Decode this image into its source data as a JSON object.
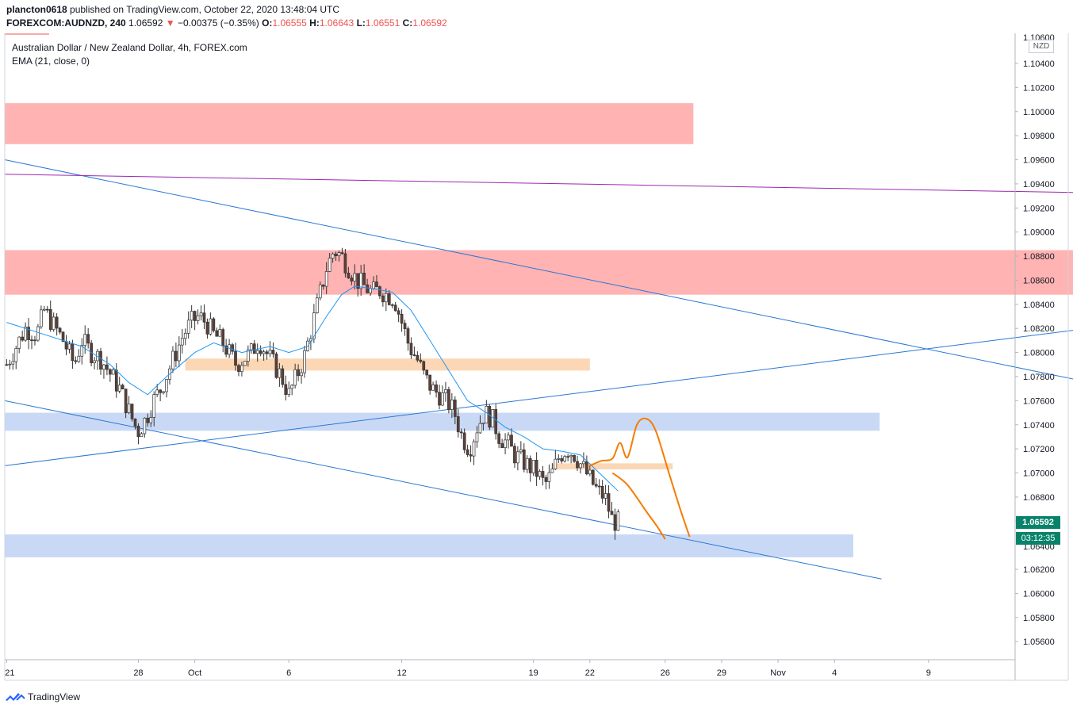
{
  "header": {
    "publisher": "plancton0618",
    "published_text": "published on TradingView.com, October 22, 2020 13:48:04 UTC",
    "symbol": "FOREXCOM:AUDNZD, 240",
    "price": "1.06592",
    "change_arrow": "▼",
    "change": "−0.00375 (−0.35%)",
    "o_label": "O:",
    "o_value": "1.06555",
    "h_label": "H:",
    "h_value": "1.06643",
    "l_label": "L:",
    "l_value": "1.06551",
    "c_label": "C:",
    "c_value": "1.06592"
  },
  "legend": {
    "title": "Australian Dollar / New Zealand Dollar, 4h, FOREX.com",
    "indicator": "EMA (21, close, 0)"
  },
  "price_axis": {
    "currency": "NZD",
    "top_partial_label": "1.10600",
    "last_price": "1.06592",
    "countdown": "03:12:35",
    "partial_label": "1.06400"
  },
  "footer": {
    "brand": "TradingView",
    "icon": "tradingview-logo-icon"
  },
  "colors": {
    "accent": "#08836b",
    "up_candle": "#26a69a",
    "down_candle": "#ef5350",
    "ema": "#2196f3",
    "red_zone": "#ffb3b3",
    "blue_zone": "#c9d9f5",
    "orange_zone": "#fcd7b5",
    "trendline": "#2a78d4",
    "purple_line": "#9c27b0",
    "projection": "#f57c00"
  },
  "chart_data": {
    "type": "candlestick",
    "timeframe": "4h",
    "y_range": [
      1.0545,
      1.1065
    ],
    "y_ticks": [
      "1.10400",
      "1.10200",
      "1.10000",
      "1.09800",
      "1.09600",
      "1.09400",
      "1.09200",
      "1.09000",
      "1.08800",
      "1.08600",
      "1.08400",
      "1.08200",
      "1.08000",
      "1.07800",
      "1.07600",
      "1.07400",
      "1.07200",
      "1.07000",
      "1.06800",
      "1.06600",
      "1.06200",
      "1.06000",
      "1.05800",
      "1.05600"
    ],
    "x_labels": [
      "21",
      "28",
      "Oct",
      "6",
      "12",
      "19",
      "22",
      "26",
      "29",
      "Nov",
      "4",
      "9"
    ],
    "x_label_days": [
      0,
      7,
      10,
      15,
      21,
      28,
      31,
      35,
      38,
      41,
      44,
      49
    ],
    "x_range_days": [
      -0.1,
      53.6
    ],
    "close_points": [
      [
        0,
        1.079
      ],
      [
        0.5,
        1.0805
      ],
      [
        1,
        1.082
      ],
      [
        1.6,
        1.0815
      ],
      [
        2,
        1.0835
      ],
      [
        2.6,
        1.082
      ],
      [
        3,
        1.081
      ],
      [
        3.6,
        1.079
      ],
      [
        4,
        1.081
      ],
      [
        4.5,
        1.08
      ],
      [
        5,
        1.0795
      ],
      [
        5.6,
        1.078
      ],
      [
        6,
        1.077
      ],
      [
        6.4,
        1.0755
      ],
      [
        6.8,
        1.074
      ],
      [
        7,
        1.0735
      ],
      [
        7.4,
        1.0745
      ],
      [
        7.8,
        1.076
      ],
      [
        8.2,
        1.077
      ],
      [
        8.6,
        1.0785
      ],
      [
        9,
        1.08
      ],
      [
        9.4,
        1.0815
      ],
      [
        9.8,
        1.0825
      ],
      [
        10.2,
        1.083
      ],
      [
        10.6,
        1.0825
      ],
      [
        11,
        1.0815
      ],
      [
        11.4,
        1.081
      ],
      [
        11.8,
        1.08
      ],
      [
        12.2,
        1.079
      ],
      [
        12.6,
        1.0795
      ],
      [
        13,
        1.08
      ],
      [
        13.4,
        1.081
      ],
      [
        13.8,
        1.08
      ],
      [
        14.2,
        1.079
      ],
      [
        14.6,
        1.078
      ],
      [
        15,
        1.0765
      ],
      [
        15.4,
        1.078
      ],
      [
        15.8,
        1.0795
      ],
      [
        16.2,
        1.082
      ],
      [
        16.6,
        1.0845
      ],
      [
        17,
        1.087
      ],
      [
        17.4,
        1.0885
      ],
      [
        17.8,
        1.088
      ],
      [
        18.2,
        1.087
      ],
      [
        18.6,
        1.086
      ],
      [
        19,
        1.0855
      ],
      [
        19.4,
        1.085
      ],
      [
        19.8,
        1.0852
      ],
      [
        20.2,
        1.0848
      ],
      [
        20.6,
        1.0845
      ],
      [
        21,
        1.0825
      ],
      [
        21.4,
        1.0805
      ],
      [
        21.8,
        1.0795
      ],
      [
        22.2,
        1.078
      ],
      [
        22.6,
        1.077
      ],
      [
        23,
        1.0765
      ],
      [
        23.4,
        1.076
      ],
      [
        23.8,
        1.075
      ],
      [
        24.2,
        1.073
      ],
      [
        24.6,
        1.072
      ],
      [
        25,
        1.0738
      ],
      [
        25.4,
        1.075
      ],
      [
        25.8,
        1.0745
      ],
      [
        26.2,
        1.073
      ],
      [
        26.6,
        1.0725
      ],
      [
        27,
        1.0715
      ],
      [
        27.4,
        1.071
      ],
      [
        27.8,
        1.0705
      ],
      [
        28.2,
        1.07
      ],
      [
        28.6,
        1.069
      ],
      [
        29,
        1.07
      ],
      [
        29.4,
        1.0715
      ],
      [
        29.8,
        1.072
      ],
      [
        30.2,
        1.0715
      ],
      [
        30.6,
        1.0705
      ],
      [
        31,
        1.0695
      ],
      [
        31.4,
        1.0685
      ],
      [
        31.8,
        1.068
      ],
      [
        32.2,
        1.066
      ],
      [
        32.5,
        1.0659
      ]
    ],
    "ema21_points": [
      [
        0,
        1.0825
      ],
      [
        2,
        1.0815
      ],
      [
        4,
        1.0805
      ],
      [
        5.5,
        1.079
      ],
      [
        6.5,
        1.0775
      ],
      [
        7.5,
        1.0765
      ],
      [
        8.5,
        1.078
      ],
      [
        10,
        1.08
      ],
      [
        11,
        1.0808
      ],
      [
        12.5,
        1.08
      ],
      [
        14,
        1.0805
      ],
      [
        15,
        1.08
      ],
      [
        16,
        1.0805
      ],
      [
        17,
        1.083
      ],
      [
        17.8,
        1.0848
      ],
      [
        18.5,
        1.0855
      ],
      [
        19.5,
        1.0853
      ],
      [
        20.5,
        1.085
      ],
      [
        21.5,
        1.0835
      ],
      [
        22.5,
        1.081
      ],
      [
        23.5,
        1.0785
      ],
      [
        24.5,
        1.076
      ],
      [
        25.5,
        1.075
      ],
      [
        26.5,
        1.0738
      ],
      [
        27.5,
        1.073
      ],
      [
        28.5,
        1.072
      ],
      [
        29.5,
        1.0718
      ],
      [
        30.5,
        1.0715
      ],
      [
        31.5,
        1.07
      ],
      [
        32.5,
        1.0685
      ]
    ],
    "drawings": {
      "red_zones": [
        {
          "x": [
            -0.1,
            36.5
          ],
          "y": [
            1.0973,
            1.1007
          ]
        },
        {
          "x": [
            -0.1,
            59
          ],
          "y": [
            1.0848,
            1.0885
          ]
        }
      ],
      "blue_zones": [
        {
          "x": [
            -0.1,
            46.4
          ],
          "y": [
            1.0735,
            1.075
          ]
        },
        {
          "x": [
            -0.1,
            45
          ],
          "y": [
            1.063,
            1.0649
          ]
        }
      ],
      "orange_zones": [
        {
          "x": [
            9.5,
            31
          ],
          "y": [
            1.0785,
            1.0795
          ]
        },
        {
          "x": [
            29,
            35.4
          ],
          "y": [
            1.0703,
            1.0708
          ]
        }
      ],
      "trendlines": [
        {
          "from": [
            -0.1,
            1.096
          ],
          "to": [
            57,
            1.0777
          ]
        },
        {
          "from": [
            -0.1,
            1.076
          ],
          "to": [
            46.5,
            1.0612
          ]
        },
        {
          "from": [
            -0.1,
            1.0706
          ],
          "to": [
            60,
            1.0825
          ]
        }
      ],
      "purple_line": {
        "from": [
          -0.1,
          1.0948
        ],
        "to": [
          60,
          1.0932
        ]
      },
      "projections": [
        [
          [
            32.2,
            1.07
          ],
          [
            33,
            1.069
          ],
          [
            34,
            1.0668
          ],
          [
            34.6,
            1.0655
          ],
          [
            35,
            1.0645
          ]
        ],
        [
          [
            31,
            1.0706
          ],
          [
            31.6,
            1.071
          ],
          [
            32.2,
            1.0712
          ],
          [
            32.6,
            1.0725
          ],
          [
            33,
            1.0713
          ],
          [
            33.5,
            1.074
          ],
          [
            34,
            1.0745
          ],
          [
            34.5,
            1.0735
          ],
          [
            35.2,
            1.07
          ],
          [
            35.8,
            1.067
          ],
          [
            36.3,
            1.0647
          ]
        ]
      ]
    }
  }
}
